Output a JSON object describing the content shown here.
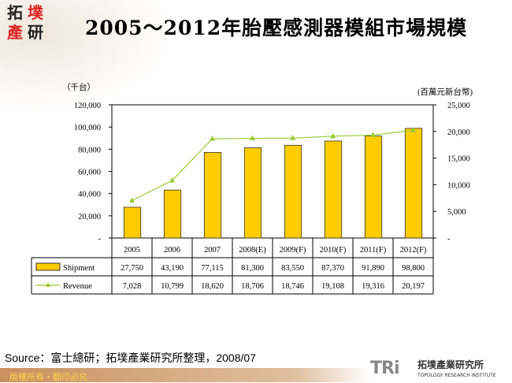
{
  "logo": {
    "chars": [
      "拓",
      "墣",
      "產",
      "研"
    ]
  },
  "title": "2005～2012年胎壓感測器模組市場規模",
  "chart_data": {
    "type": "bar+line",
    "title": "2005～2012年胎壓感測器模組市場規模",
    "categories": [
      "2005",
      "2006",
      "2007",
      "2008(E)",
      "2009(F)",
      "2010(F)",
      "2011(F)",
      "2012(F)"
    ],
    "left_axis": {
      "label": "（千台）",
      "range": [
        0,
        120000
      ],
      "ticks": [
        "-",
        "20,000",
        "40,000",
        "60,000",
        "80,000",
        "100,000",
        "120,000"
      ]
    },
    "right_axis": {
      "label": "(百萬元新台幣)",
      "range": [
        0,
        25000
      ],
      "ticks": [
        "-",
        "5,000",
        "10,000",
        "15,000",
        "20,000",
        "25,000"
      ]
    },
    "series": [
      {
        "name": "Shipment",
        "type": "bar",
        "axis": "left",
        "color": "#FFCC00",
        "values": [
          27750,
          43190,
          77115,
          81300,
          83550,
          87370,
          91890,
          98800
        ],
        "labels": [
          "27,750",
          "43,190",
          "77,115",
          "81,300",
          "83,550",
          "87,370",
          "91,890",
          "98,800"
        ]
      },
      {
        "name": "Revenue",
        "type": "line",
        "axis": "right",
        "color": "#99CC33",
        "marker": "triangle",
        "values": [
          7028,
          10799,
          18620,
          18706,
          18746,
          19108,
          19316,
          20197
        ],
        "labels": [
          "7,028",
          "10,799",
          "18,620",
          "18,706",
          "18,746",
          "19,108",
          "19,316",
          "20,197"
        ]
      }
    ],
    "grid": false,
    "legend": "data-table"
  },
  "source": "Source：富士總研；拓墣產業研究所整理，2008/07",
  "footer": {
    "copyright": "版權所有・翻印必究",
    "brand": "TRi",
    "brand_cn": "拓墣產業研究所",
    "brand_en": "TOPOLOGY RESEARCH INSTITUTE"
  }
}
